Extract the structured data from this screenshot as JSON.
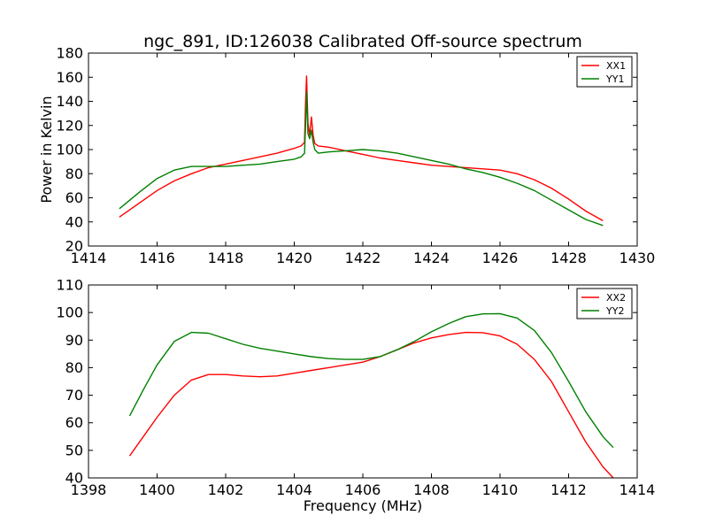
{
  "figure": {
    "title": "ngc_891, ID:126038 Calibrated Off-source spectrum"
  },
  "chart_data": [
    {
      "type": "line",
      "title": "ngc_891, ID:126038 Calibrated Off-source spectrum",
      "xlabel": "",
      "ylabel": "Power in Kelvin",
      "xlim": [
        1414,
        1430
      ],
      "ylim": [
        20,
        180
      ],
      "xticks": [
        1414,
        1416,
        1418,
        1420,
        1422,
        1424,
        1426,
        1428,
        1430
      ],
      "yticks": [
        20,
        40,
        60,
        80,
        100,
        120,
        140,
        160,
        180
      ],
      "grid": false,
      "legend_position": "top-right",
      "series": [
        {
          "name": "XX1",
          "color": "#ff0000",
          "x": [
            1414.9,
            1415.5,
            1416.0,
            1416.5,
            1417.0,
            1417.5,
            1418.0,
            1418.5,
            1419.0,
            1419.5,
            1420.0,
            1420.2,
            1420.3,
            1420.33,
            1420.36,
            1420.4,
            1420.45,
            1420.5,
            1420.55,
            1420.6,
            1420.7,
            1421.0,
            1421.5,
            1422.0,
            1422.5,
            1423.0,
            1423.5,
            1424.0,
            1424.5,
            1425.0,
            1425.5,
            1426.0,
            1426.5,
            1427.0,
            1427.5,
            1428.0,
            1428.5,
            1429.0
          ],
          "y": [
            44,
            56,
            66,
            74,
            80,
            85,
            88,
            91,
            94,
            97,
            101,
            103,
            106,
            140,
            161,
            122,
            112,
            127,
            112,
            105,
            103,
            102,
            99,
            96,
            93,
            91,
            89,
            87,
            86,
            85,
            84,
            83,
            80,
            75,
            68,
            59,
            49,
            41
          ]
        },
        {
          "name": "YY1",
          "color": "#008000",
          "x": [
            1414.9,
            1415.5,
            1416.0,
            1416.5,
            1417.0,
            1417.5,
            1418.0,
            1418.5,
            1419.0,
            1419.5,
            1420.0,
            1420.2,
            1420.3,
            1420.33,
            1420.36,
            1420.4,
            1420.45,
            1420.5,
            1420.55,
            1420.6,
            1420.7,
            1421.0,
            1421.5,
            1422.0,
            1422.5,
            1423.0,
            1423.5,
            1424.0,
            1424.5,
            1425.0,
            1425.5,
            1426.0,
            1426.5,
            1427.0,
            1427.5,
            1428.0,
            1428.5,
            1429.0
          ],
          "y": [
            51,
            65,
            76,
            83,
            86,
            86,
            86,
            87,
            88,
            90,
            92,
            94,
            97,
            120,
            148,
            113,
            109,
            116,
            106,
            100,
            97,
            98,
            99,
            100,
            99,
            97,
            94,
            91,
            88,
            84,
            81,
            77,
            72,
            66,
            58,
            50,
            42,
            37
          ]
        }
      ]
    },
    {
      "type": "line",
      "title": "",
      "xlabel": "Frequency (MHz)",
      "ylabel": "",
      "xlim": [
        1398,
        1414
      ],
      "ylim": [
        40,
        110
      ],
      "xticks": [
        1398,
        1400,
        1402,
        1404,
        1406,
        1408,
        1410,
        1412,
        1414
      ],
      "yticks": [
        40,
        50,
        60,
        70,
        80,
        90,
        100,
        110
      ],
      "grid": false,
      "legend_position": "top-right",
      "series": [
        {
          "name": "XX2",
          "color": "#ff0000",
          "x": [
            1399.2,
            1399.6,
            1400.0,
            1400.5,
            1401.0,
            1401.5,
            1402.0,
            1402.5,
            1403.0,
            1403.5,
            1404.0,
            1404.5,
            1405.0,
            1405.5,
            1406.0,
            1406.5,
            1407.0,
            1407.5,
            1408.0,
            1408.5,
            1409.0,
            1409.5,
            1410.0,
            1410.5,
            1411.0,
            1411.5,
            1412.0,
            1412.5,
            1413.0,
            1413.3
          ],
          "y": [
            48,
            55,
            62,
            70,
            75.5,
            77.5,
            77.5,
            77,
            76.7,
            77,
            78,
            79,
            80,
            81,
            82,
            84,
            86.5,
            89,
            90.8,
            92,
            92.8,
            92.7,
            91.5,
            88.5,
            83,
            75,
            64,
            53,
            44,
            40
          ]
        },
        {
          "name": "YY2",
          "color": "#008000",
          "x": [
            1399.2,
            1399.6,
            1400.0,
            1400.5,
            1401.0,
            1401.5,
            1402.0,
            1402.5,
            1403.0,
            1403.5,
            1404.0,
            1404.5,
            1405.0,
            1405.5,
            1406.0,
            1406.5,
            1407.0,
            1407.5,
            1408.0,
            1408.5,
            1409.0,
            1409.5,
            1410.0,
            1410.5,
            1411.0,
            1411.5,
            1412.0,
            1412.5,
            1413.0,
            1413.3
          ],
          "y": [
            62.5,
            72,
            81,
            89.5,
            92.8,
            92.5,
            90.5,
            88.5,
            87,
            86,
            85,
            84,
            83.3,
            83,
            83,
            84,
            86.5,
            89.5,
            93,
            96,
            98.5,
            99.5,
            99.6,
            98,
            93.5,
            85.5,
            75,
            64,
            55,
            51
          ]
        }
      ]
    }
  ]
}
